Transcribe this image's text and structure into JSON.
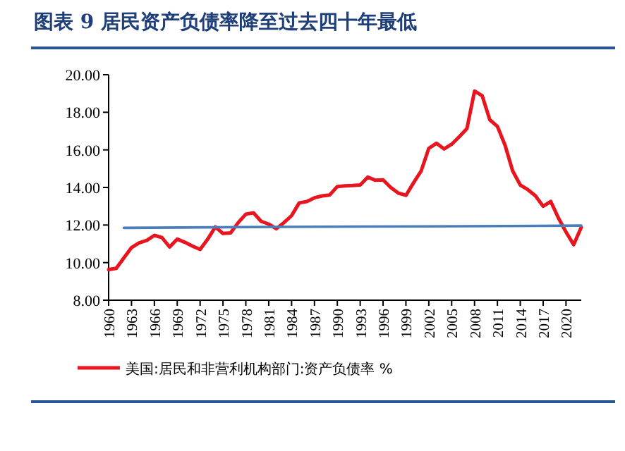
{
  "chart_data": {
    "type": "line",
    "title": "图表 9   居民资产负债率降至过去四十年最低",
    "x": [
      1960,
      1961,
      1962,
      1963,
      1964,
      1965,
      1966,
      1967,
      1968,
      1969,
      1970,
      1971,
      1972,
      1973,
      1974,
      1975,
      1976,
      1977,
      1978,
      1979,
      1980,
      1981,
      1982,
      1983,
      1984,
      1985,
      1986,
      1987,
      1988,
      1989,
      1990,
      1991,
      1992,
      1993,
      1994,
      1995,
      1996,
      1997,
      1998,
      1999,
      2000,
      2001,
      2002,
      2003,
      2004,
      2005,
      2006,
      2007,
      2008,
      2009,
      2010,
      2011,
      2012,
      2013,
      2014,
      2015,
      2016,
      2017,
      2018,
      2019,
      2020,
      2021,
      2022
    ],
    "series": [
      {
        "name": "美国:居民和非营利机构部门:资产负债率 %",
        "color": "#e8141e",
        "values": [
          9.63,
          9.7,
          10.25,
          10.8,
          11.05,
          11.18,
          11.45,
          11.33,
          10.83,
          11.25,
          11.08,
          10.88,
          10.7,
          11.25,
          11.9,
          11.55,
          11.58,
          12.13,
          12.58,
          12.65,
          12.2,
          12.05,
          11.8,
          12.13,
          12.5,
          13.18,
          13.25,
          13.45,
          13.55,
          13.6,
          14.05,
          14.08,
          14.1,
          14.13,
          14.55,
          14.38,
          14.4,
          14.0,
          13.7,
          13.58,
          14.25,
          14.88,
          16.08,
          16.35,
          16.05,
          16.3,
          16.7,
          17.13,
          19.13,
          18.88,
          17.6,
          17.25,
          16.25,
          14.88,
          14.13,
          13.88,
          13.55,
          13.0,
          13.25,
          12.38,
          11.63,
          10.95,
          11.88
        ]
      },
      {
        "color": "#4a7ebb",
        "x": [
          1962,
          1982,
          2002,
          2022
        ],
        "values": [
          11.85,
          11.9,
          11.93,
          11.97
        ]
      }
    ],
    "xlim": [
      1960,
      2022
    ],
    "xticks": [
      1960,
      1963,
      1966,
      1969,
      1972,
      1975,
      1978,
      1981,
      1984,
      1987,
      1990,
      1993,
      1996,
      1999,
      2002,
      2005,
      2008,
      2011,
      2014,
      2017,
      2020
    ],
    "ylim": [
      8,
      20
    ],
    "yticks": [
      {
        "value": 8,
        "label": "8.00"
      },
      {
        "value": 10,
        "label": "10.00"
      },
      {
        "value": 12,
        "label": "12.00"
      },
      {
        "value": 14,
        "label": "14.00"
      },
      {
        "value": 16,
        "label": "16.00"
      },
      {
        "value": 18,
        "label": "18.00"
      },
      {
        "value": 20,
        "label": "20.00"
      }
    ],
    "legend": "bottom",
    "grid": false
  }
}
